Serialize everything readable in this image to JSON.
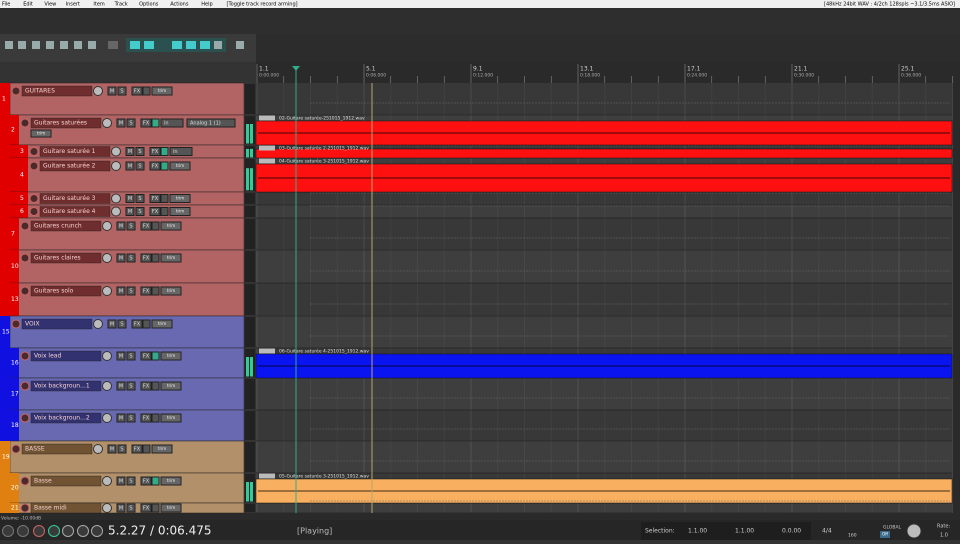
{
  "menu": {
    "items": [
      "File",
      "Edit",
      "View",
      "Insert",
      "Item",
      "Track",
      "Options",
      "Actions",
      "Help"
    ],
    "action": "[Toggle track record arming]",
    "status": "[48kHz 24bit WAV : 4/2ch 128spls ~3.1/3.5ms ASIO]"
  },
  "ruler": {
    "marks": [
      {
        "bar": "1.1",
        "time": "0:00.000"
      },
      {
        "bar": "5.1",
        "time": "0:06.000"
      },
      {
        "bar": "9.1",
        "time": "0:12.000"
      },
      {
        "bar": "13.1",
        "time": "0:18.000"
      },
      {
        "bar": "17.1",
        "time": "0:24.000"
      },
      {
        "bar": "21.1",
        "time": "0:30.000"
      },
      {
        "bar": "25.1",
        "time": "0:36.000"
      }
    ]
  },
  "track_buttons": {
    "mute": "M",
    "solo": "S",
    "fx": "FX",
    "trim": "trim"
  },
  "tracks": [
    {
      "number": "1",
      "name": "GUITARES",
      "color": "#e00000"
    },
    {
      "number": "2",
      "name": "Guitares saturées",
      "color": "#e00000",
      "input_mode": "in",
      "input": "Analog 1 (1)",
      "items": [
        {
          "name": "02-Guitare saturée-251015_1912.wav",
          "color": "#ff1010"
        }
      ]
    },
    {
      "number": "3",
      "name": "Guitare saturée 1",
      "color": "#e00000",
      "input_mode": "in",
      "items": [
        {
          "name": "03-Guitare saturée 2-251015_1912.wav",
          "color": "#ff1010"
        }
      ]
    },
    {
      "number": "4",
      "name": "Guitare saturée 2",
      "color": "#e00000",
      "items": [
        {
          "name": "04-Guitare saturée 3-251015_1912.wav",
          "color": "#ff1010"
        }
      ]
    },
    {
      "number": "5",
      "name": "Guitare saturée 3",
      "color": "#e00000"
    },
    {
      "number": "6",
      "name": "Guitare saturée 4",
      "color": "#e00000"
    },
    {
      "number": "7",
      "name": "Guitares crunch",
      "color": "#e00000"
    },
    {
      "number": "10",
      "name": "Guitares claires",
      "color": "#e00000"
    },
    {
      "number": "13",
      "name": "Guitares solo",
      "color": "#e00000"
    },
    {
      "number": "15",
      "name": "VOIX",
      "color": "#1010e0"
    },
    {
      "number": "16",
      "name": "Voix lead",
      "color": "#1010e0",
      "items": [
        {
          "name": "06-Guitare saturée 4-251015_1912.wav",
          "color": "#0a14f0"
        }
      ]
    },
    {
      "number": "17",
      "name": "Voix backgroun...1",
      "color": "#1010e0"
    },
    {
      "number": "18",
      "name": "Voix backgroun...2",
      "color": "#1010e0"
    },
    {
      "number": "19",
      "name": "BASSE",
      "color": "#e08010"
    },
    {
      "number": "20",
      "name": "Basse",
      "color": "#e08010",
      "items": [
        {
          "name": "05-Guitare saturée 3-251015_1912.wav",
          "color": "#f8b060"
        }
      ]
    },
    {
      "number": "21",
      "name": "Basse midi",
      "color": "#e08010"
    }
  ],
  "transport": {
    "volume": "Volume: -10.00dB",
    "position": "5.2.27 / 0:06.475",
    "state": "[Playing]",
    "selection_label": "Selection:",
    "sel_start": "1.1.00",
    "sel_end": "1.1.00",
    "sel_length": "0.0.00",
    "time_signature": "4/4",
    "tempo": "160",
    "global": "GLOBAL",
    "global_state": "Off",
    "rate_label": "Rate:",
    "rate": "1.0"
  }
}
